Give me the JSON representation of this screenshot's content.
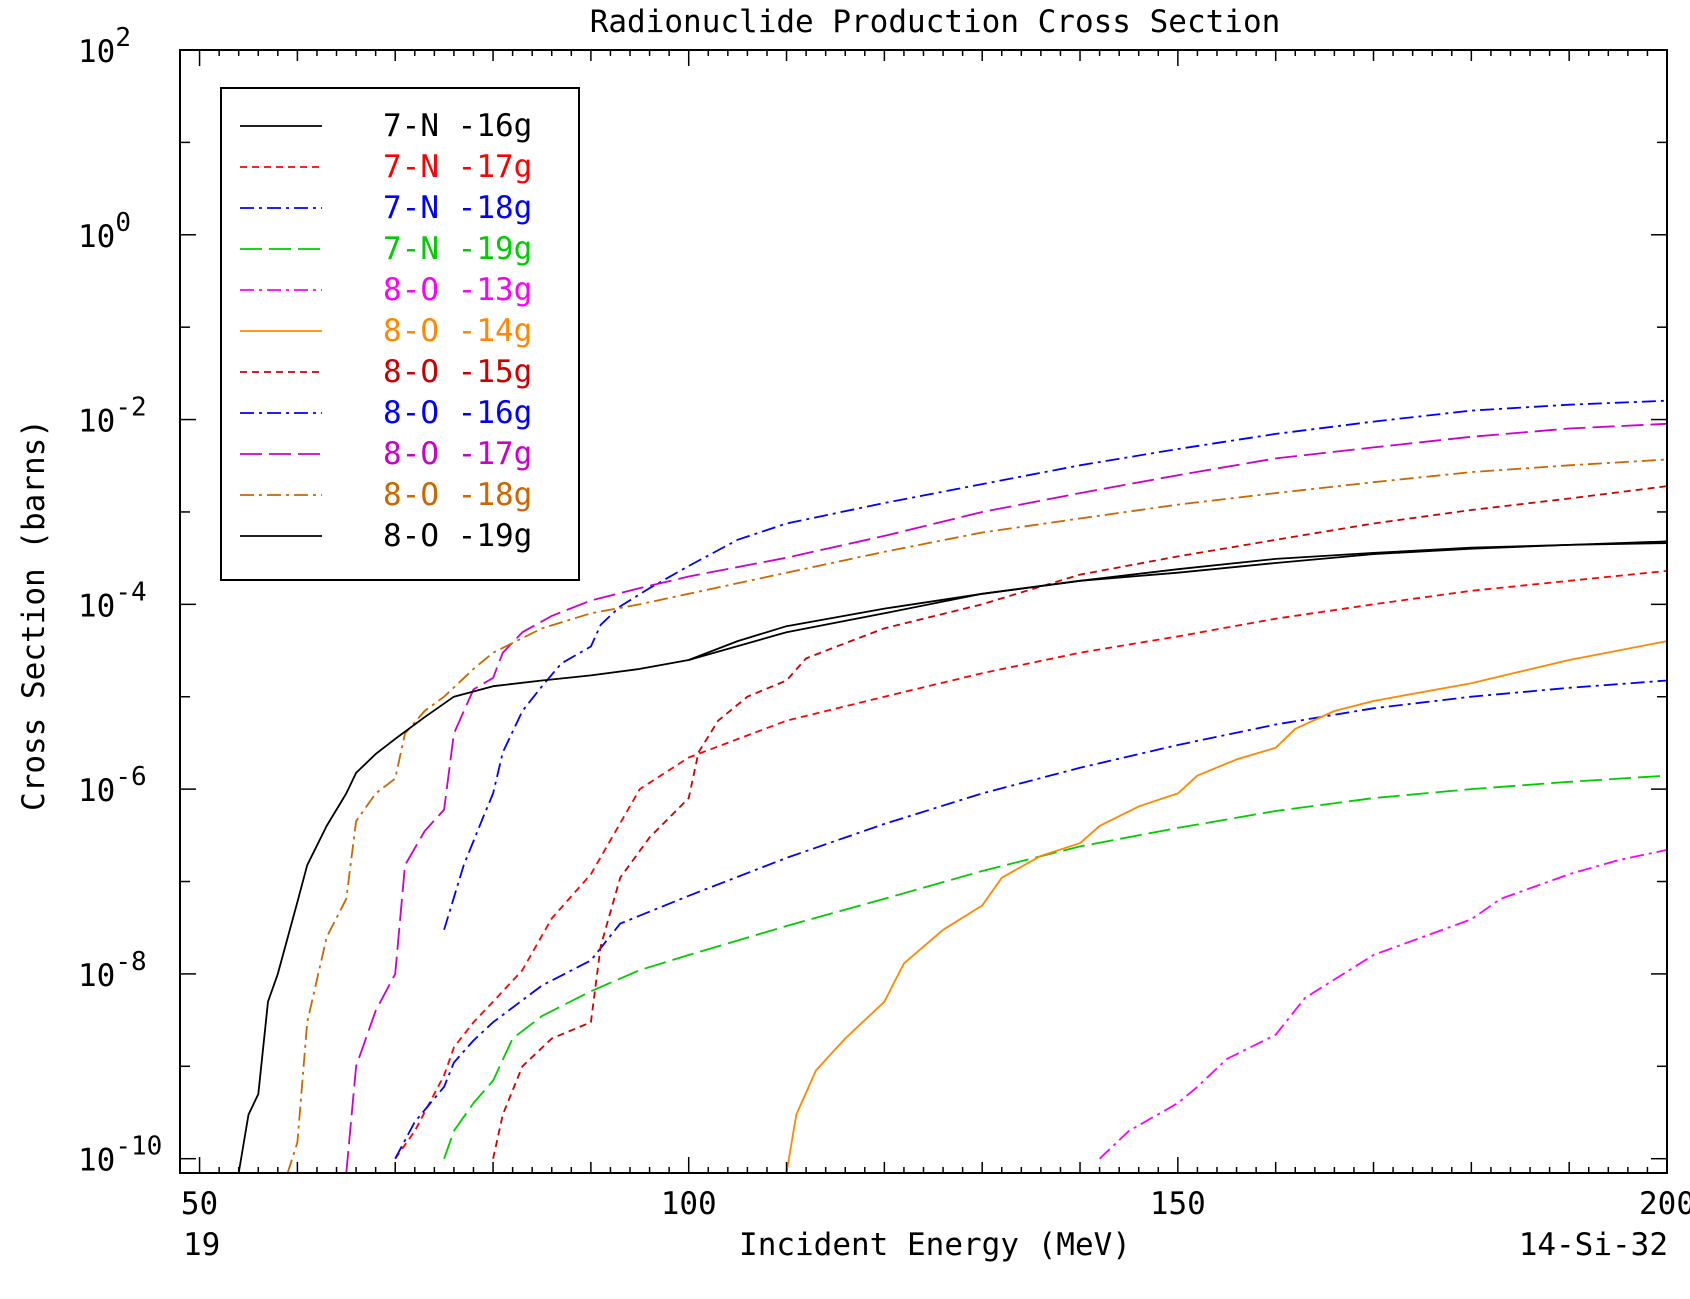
{
  "chart_data": {
    "type": "line",
    "title": "Radionuclide Production Cross Section",
    "xlabel": "Incident Energy (MeV)",
    "ylabel": "Cross Section (barns)",
    "xlim": [
      48,
      200
    ],
    "ylim": [
      7e-11,
      100
    ],
    "yscale": "log",
    "x_ticks": [
      50,
      100,
      150,
      200
    ],
    "y_ticks": [
      {
        "value": 1e-10,
        "base": "10",
        "exp": "-10"
      },
      {
        "value": 1e-08,
        "base": "10",
        "exp": "-8"
      },
      {
        "value": 1e-06,
        "base": "10",
        "exp": "-6"
      },
      {
        "value": 0.0001,
        "base": "10",
        "exp": "-4"
      },
      {
        "value": 0.01,
        "base": "10",
        "exp": "-2"
      },
      {
        "value": 1,
        "base": "10",
        "exp": "0"
      },
      {
        "value": 100,
        "base": "10",
        "exp": "2"
      }
    ],
    "footer_left": "19",
    "footer_right": "14-Si-32",
    "grid": false,
    "legend_position": "top-left",
    "series": [
      {
        "name": "7-N -16g",
        "color": "#000000",
        "dash": "solid",
        "x": [
          100,
          105,
          110,
          120,
          130,
          140,
          150,
          160,
          170,
          180,
          190,
          200
        ],
        "y": [
          2.5e-05,
          4e-05,
          5.8e-05,
          9e-05,
          0.00013,
          0.00018,
          0.00024,
          0.00031,
          0.00036,
          0.00041,
          0.00044,
          0.00046
        ]
      },
      {
        "name": "7-N -17g",
        "color": "#ff0000",
        "dash": "short",
        "x": [
          70,
          72,
          75,
          76,
          78,
          80,
          83,
          86,
          90,
          95,
          100,
          110,
          120,
          130,
          140,
          150,
          160,
          170,
          180,
          190,
          200
        ],
        "y": [
          1e-10,
          2e-10,
          8e-10,
          1.6e-09,
          3e-09,
          5e-09,
          1.1e-08,
          4e-08,
          1.2e-07,
          1e-06,
          2.2e-06,
          5.5e-06,
          1e-05,
          1.8e-05,
          3e-05,
          4.5e-05,
          7e-05,
          0.0001,
          0.00014,
          0.00018,
          0.00023
        ]
      },
      {
        "name": "7-N -18g",
        "color": "#0000ff",
        "dash": "dashdot",
        "x": [
          70,
          72,
          75,
          76,
          78,
          80,
          85,
          90,
          93,
          100,
          110,
          120,
          130,
          140,
          150,
          160,
          170,
          180,
          190,
          200
        ],
        "y": [
          1e-10,
          2.5e-10,
          6e-10,
          1.1e-09,
          1.9e-09,
          3e-09,
          7.5e-09,
          1.4e-08,
          3.5e-08,
          7e-08,
          1.8e-07,
          4.2e-07,
          9e-07,
          1.7e-06,
          3e-06,
          5e-06,
          7.5e-06,
          1e-05,
          1.25e-05,
          1.5e-05
        ]
      },
      {
        "name": "7-N -19g",
        "color": "#00cc00",
        "dash": "longdash",
        "x": [
          75,
          76,
          78,
          80,
          82,
          85,
          90,
          95,
          100,
          110,
          120,
          130,
          140,
          150,
          160,
          170,
          180,
          190,
          200
        ],
        "y": [
          1e-10,
          2e-10,
          4e-10,
          7e-10,
          2e-09,
          3.5e-09,
          6.5e-09,
          1.1e-08,
          1.6e-08,
          3.3e-08,
          6.5e-08,
          1.3e-07,
          2.4e-07,
          3.8e-07,
          5.8e-07,
          8e-07,
          1e-06,
          1.2e-06,
          1.4e-06
        ]
      },
      {
        "name": "8-O -13g",
        "color": "#ff00ff",
        "dash": "dashdot",
        "x": [
          142,
          145,
          150,
          152,
          155,
          160,
          163,
          170,
          175,
          180,
          183,
          190,
          195,
          200
        ],
        "y": [
          1e-10,
          2e-10,
          4e-10,
          6e-10,
          1.2e-09,
          2.2e-09,
          5.5e-09,
          1.6e-08,
          2.5e-08,
          3.9e-08,
          6.5e-08,
          1.2e-07,
          1.7e-07,
          2.2e-07
        ]
      },
      {
        "name": "8-O -14g",
        "color": "#ff8800",
        "dash": "solid",
        "x": [
          110,
          111,
          113,
          116,
          120,
          122,
          126,
          130,
          132,
          136,
          140,
          142,
          146,
          150,
          152,
          156,
          160,
          162,
          166,
          170,
          180,
          190,
          200
        ],
        "y": [
          7e-11,
          3e-10,
          9e-10,
          2e-09,
          5e-09,
          1.3e-08,
          3e-08,
          5.5e-08,
          1.1e-07,
          1.9e-07,
          2.6e-07,
          4e-07,
          6.5e-07,
          9e-07,
          1.4e-06,
          2.1e-06,
          2.8e-06,
          4.5e-06,
          7e-06,
          9e-06,
          1.4e-05,
          2.5e-05,
          4e-05
        ]
      },
      {
        "name": "8-O -15g",
        "color": "#cc0000",
        "dash": "short",
        "x": [
          80,
          81,
          83,
          86,
          90,
          91,
          93,
          96,
          100,
          101,
          103,
          106,
          110,
          112,
          116,
          120,
          130,
          140,
          150,
          160,
          170,
          180,
          190,
          200
        ],
        "y": [
          1e-10,
          3e-10,
          1e-09,
          2e-09,
          3e-09,
          2e-08,
          1.1e-07,
          3e-07,
          8e-07,
          2.5e-06,
          5.5e-06,
          1e-05,
          1.5e-05,
          2.6e-05,
          3.8e-05,
          5.5e-05,
          0.0001,
          0.00021,
          0.00033,
          0.0005,
          0.00075,
          0.00105,
          0.0014,
          0.0019
        ]
      },
      {
        "name": "8-O -16g",
        "color": "#0000ff",
        "dash": "dashdot",
        "x": [
          75,
          77,
          79,
          80,
          81,
          83,
          85,
          87,
          90,
          91,
          93,
          96,
          100,
          105,
          110,
          120,
          130,
          140,
          150,
          160,
          170,
          180,
          190,
          200
        ],
        "y": [
          3e-08,
          1.5e-07,
          5e-07,
          9e-07,
          2.5e-06,
          7e-06,
          1.3e-05,
          2.3e-05,
          3.5e-05,
          6e-05,
          9.5e-05,
          0.00015,
          0.00026,
          0.0005,
          0.00075,
          0.00125,
          0.002,
          0.0032,
          0.0048,
          0.007,
          0.0095,
          0.0125,
          0.0145,
          0.016
        ]
      },
      {
        "name": "8-O -17g",
        "color": "#cc00cc",
        "dash": "longdash",
        "x": [
          65,
          66,
          68,
          70,
          71,
          73,
          75,
          76,
          78,
          80,
          81,
          83,
          86,
          90,
          95,
          100,
          110,
          120,
          130,
          140,
          150,
          160,
          170,
          180,
          190,
          200
        ],
        "y": [
          7e-11,
          1e-09,
          4e-09,
          1e-08,
          1.5e-07,
          3.5e-07,
          6e-07,
          4e-06,
          1.2e-05,
          1.6e-05,
          3e-05,
          5e-05,
          7.5e-05,
          0.00011,
          0.00015,
          0.0002,
          0.00032,
          0.00055,
          0.001,
          0.0016,
          0.0025,
          0.0038,
          0.005,
          0.0065,
          0.008,
          0.009
        ]
      },
      {
        "name": "8-O -18g",
        "color": "#cc6600",
        "dash": "dashdot",
        "x": [
          59,
          60,
          61,
          63,
          65,
          66,
          68,
          70,
          71,
          73,
          75,
          78,
          80,
          85,
          90,
          95,
          100,
          110,
          120,
          130,
          140,
          150,
          160,
          170,
          180,
          190,
          200
        ],
        "y": [
          7e-11,
          1.5e-10,
          3e-09,
          2.5e-08,
          6.5e-08,
          4.5e-07,
          9e-07,
          1.3e-06,
          4e-06,
          7e-06,
          1e-05,
          2e-05,
          3e-05,
          5.5e-05,
          8e-05,
          0.0001,
          0.00013,
          0.00022,
          0.00037,
          0.0006,
          0.00085,
          0.0012,
          0.0016,
          0.0021,
          0.0027,
          0.0032,
          0.0037
        ]
      },
      {
        "name": "8-O -19g",
        "color": "#000000",
        "dash": "solid",
        "x": [
          54,
          55,
          56,
          57,
          58,
          60,
          61,
          63,
          65,
          66,
          68,
          70,
          73,
          76,
          80,
          85,
          90,
          95,
          100,
          110,
          120,
          130,
          140,
          150,
          160,
          170,
          180,
          190,
          200
        ],
        "y": [
          7e-11,
          3e-10,
          5e-10,
          5e-09,
          1e-08,
          6e-08,
          1.5e-07,
          4e-07,
          9e-07,
          1.5e-06,
          2.4e-06,
          3.5e-06,
          6e-06,
          1e-05,
          1.3e-05,
          1.5e-05,
          1.7e-05,
          2e-05,
          2.5e-05,
          5e-05,
          8e-05,
          0.00013,
          0.00018,
          0.00022,
          0.00028,
          0.00035,
          0.0004,
          0.00044,
          0.00048
        ]
      }
    ]
  }
}
